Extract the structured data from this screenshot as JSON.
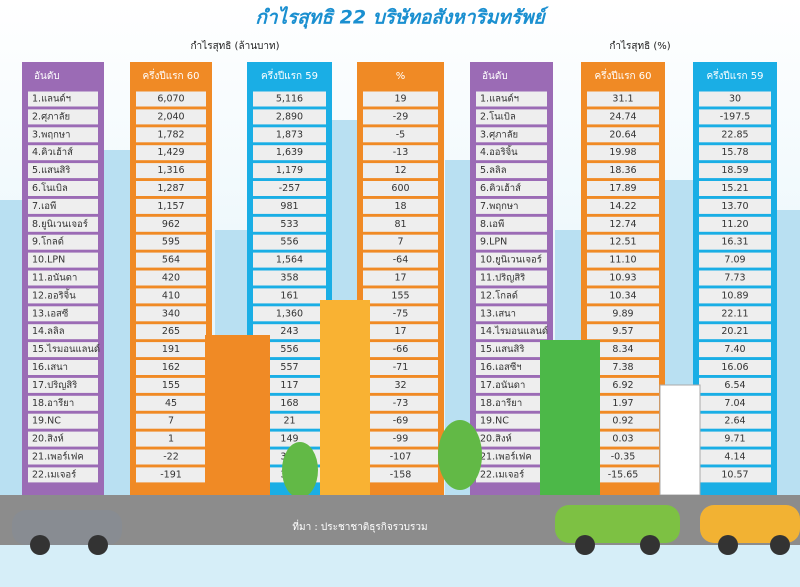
{
  "title": "กำไรสุทธิ 22 บริษัทอสังหาริมทรัพย์",
  "tables": [
    {
      "caption": "กำไรสุทธิ (ล้านบาท)",
      "columns": [
        "อันดับ",
        "ครึ่งปีแรก 60",
        "ครึ่งปีแรก 59",
        "%"
      ],
      "rows": [
        [
          "1.แลนด์ฯ",
          "6,070",
          "5,116",
          "19"
        ],
        [
          "2.ศุภาลัย",
          "2,040",
          "2,890",
          "-29"
        ],
        [
          "3.พฤกษา",
          "1,782",
          "1,873",
          "-5"
        ],
        [
          "4.คิวเฮ้าส์",
          "1,429",
          "1,639",
          "-13"
        ],
        [
          "5.แสนสิริ",
          "1,316",
          "1,179",
          "12"
        ],
        [
          "6.โนเบิล",
          "1,287",
          "-257",
          "600"
        ],
        [
          "7.เอพี",
          "1,157",
          "981",
          "18"
        ],
        [
          "8.ยูนิเวนเจอร์",
          "962",
          "533",
          "81"
        ],
        [
          "9.โกลด์",
          "595",
          "556",
          "7"
        ],
        [
          "10.LPN",
          "564",
          "1,564",
          "-64"
        ],
        [
          "11.อนันดา",
          "420",
          "358",
          "17"
        ],
        [
          "12.ออริจิ้น",
          "410",
          "161",
          "155"
        ],
        [
          "13.เอสซี",
          "340",
          "1,360",
          "-75"
        ],
        [
          "14.ลลิล",
          "265",
          "243",
          "17"
        ],
        [
          "15.ไรมอนแลนด์",
          "191",
          "556",
          "-66"
        ],
        [
          "16.เสนา",
          "162",
          "557",
          "-71"
        ],
        [
          "17.ปริญสิริ",
          "155",
          "117",
          "32"
        ],
        [
          "18.อารียา",
          "45",
          "168",
          "-73"
        ],
        [
          "19.NC",
          "7",
          "21",
          "-69"
        ],
        [
          "20.สิงห์",
          "1",
          "149",
          "-99"
        ],
        [
          "21.เพอร์เฟค",
          "-22",
          "307",
          "-107"
        ],
        [
          "22.เมเจอร์",
          "-191",
          "327",
          "-158"
        ]
      ]
    },
    {
      "caption": "กำไรสุทธิ (%)",
      "columns": [
        "อันดับ",
        "ครึ่งปีแรก 60",
        "ครึ่งปีแรก 59"
      ],
      "rows": [
        [
          "1.แลนด์ฯ",
          "31.1",
          "30"
        ],
        [
          "2.โนเบิล",
          "24.74",
          "-197.5"
        ],
        [
          "3.ศุภาลัย",
          "20.64",
          "22.85"
        ],
        [
          "4.ออริจิ้น",
          "19.98",
          "15.78"
        ],
        [
          "5.ลลิล",
          "18.36",
          "18.59"
        ],
        [
          "6.คิวเฮ้าส์",
          "17.89",
          "15.21"
        ],
        [
          "7.พฤกษา",
          "14.22",
          "13.70"
        ],
        [
          "8.เอพี",
          "12.74",
          "11.20"
        ],
        [
          "9.LPN",
          "12.51",
          "16.31"
        ],
        [
          "10.ยูนิเวนเจอร์",
          "11.10",
          "7.09"
        ],
        [
          "11.ปริญสิริ",
          "10.93",
          "7.73"
        ],
        [
          "12.โกลด์",
          "10.34",
          "10.89"
        ],
        [
          "13.เสนา",
          "9.89",
          "22.11"
        ],
        [
          "14.ไรมอนแลนด์",
          "9.57",
          "20.21"
        ],
        [
          "15.แสนสิริ",
          "8.34",
          "7.40"
        ],
        [
          "16.เอสซีฯ",
          "7.38",
          "16.06"
        ],
        [
          "17.อนันดา",
          "6.92",
          "6.54"
        ],
        [
          "18.อารียา",
          "1.97",
          "7.04"
        ],
        [
          "19.NC",
          "0.92",
          "2.64"
        ],
        [
          "20.สิงห์",
          "0.03",
          "9.71"
        ],
        [
          "21.เพอร์เฟค",
          "-0.35",
          "4.14"
        ],
        [
          "22.เมเจอร์",
          "-15.65",
          "10.57"
        ]
      ]
    }
  ],
  "source": "ที่มา : ประชาชาติธุรกิจรวบรวม"
}
